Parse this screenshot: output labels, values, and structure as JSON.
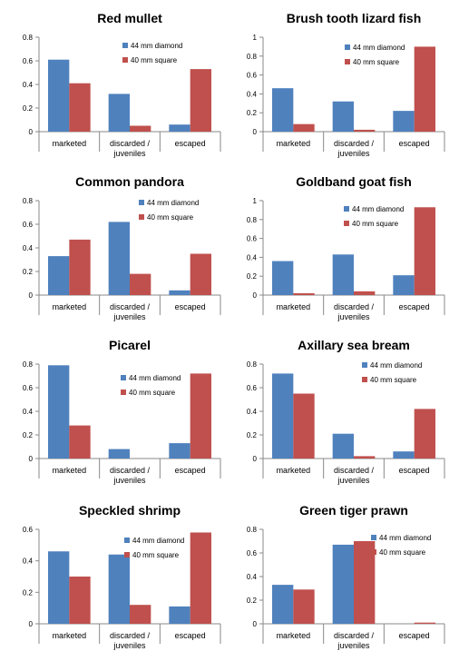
{
  "legend_labels": [
    "44 mm diamond",
    "40 mm square"
  ],
  "colors": {
    "series_1": "#4F81BD",
    "series_2": "#C0504D",
    "axis": "#888888",
    "text": "#000000"
  },
  "chart_data": [
    {
      "type": "bar",
      "title": "Red mullet",
      "categories": [
        [
          "marketed"
        ],
        [
          "discarded /",
          "juveniles"
        ],
        [
          "escaped"
        ]
      ],
      "series": [
        {
          "name": "44 mm diamond",
          "values": [
            0.61,
            0.32,
            0.06
          ]
        },
        {
          "name": "40 mm square",
          "values": [
            0.41,
            0.05,
            0.53
          ]
        }
      ],
      "ylim": [
        0,
        0.8
      ],
      "yticks": [
        "0",
        "0.2",
        "0.4",
        "0.6",
        "0.8"
      ],
      "legend": "right"
    },
    {
      "type": "bar",
      "title": "Brush tooth lizard fish",
      "categories": [
        [
          "marketed"
        ],
        [
          "discarded /",
          "juveniles"
        ],
        [
          "escaped"
        ]
      ],
      "series": [
        {
          "name": "44 mm diamond",
          "values": [
            0.46,
            0.32,
            0.22
          ]
        },
        {
          "name": "40 mm square",
          "values": [
            0.08,
            0.02,
            0.9
          ]
        }
      ],
      "ylim": [
        0,
        1
      ],
      "yticks": [
        "0",
        "0.2",
        "0.4",
        "0.6",
        "0.8",
        "1"
      ],
      "legend": "right"
    },
    {
      "type": "bar",
      "title": "Common pandora",
      "categories": [
        [
          "marketed"
        ],
        [
          "discarded /",
          "juveniles"
        ],
        [
          "escaped"
        ]
      ],
      "series": [
        {
          "name": "44 mm diamond",
          "values": [
            0.33,
            0.62,
            0.04
          ]
        },
        {
          "name": "40 mm square",
          "values": [
            0.47,
            0.18,
            0.35
          ]
        }
      ],
      "ylim": [
        0,
        0.8
      ],
      "yticks": [
        "0",
        "0.2",
        "0.4",
        "0.6",
        "0.8"
      ],
      "legend": "top-right"
    },
    {
      "type": "bar",
      "title": "Goldband goat fish",
      "categories": [
        [
          "marketed"
        ],
        [
          "discarded /",
          "juveniles"
        ],
        [
          "escaped"
        ]
      ],
      "series": [
        {
          "name": "44 mm diamond",
          "values": [
            0.36,
            0.43,
            0.21
          ]
        },
        {
          "name": "40 mm square",
          "values": [
            0.02,
            0.04,
            0.93
          ]
        }
      ],
      "ylim": [
        0,
        1
      ],
      "yticks": [
        "0",
        "0.2",
        "0.4",
        "0.6",
        "0.8",
        "1"
      ],
      "legend": "right"
    },
    {
      "type": "bar",
      "title": "Picarel",
      "categories": [
        [
          "marketed"
        ],
        [
          "discarded /",
          "juveniles"
        ],
        [
          "escaped"
        ]
      ],
      "series": [
        {
          "name": "44 mm diamond",
          "values": [
            0.79,
            0.08,
            0.13
          ]
        },
        {
          "name": "40 mm square",
          "values": [
            0.28,
            0,
            0.72
          ]
        }
      ],
      "ylim": [
        0,
        0.8
      ],
      "yticks": [
        "0",
        "0.2",
        "0.4",
        "0.6",
        "0.8"
      ],
      "legend": "right"
    },
    {
      "type": "bar",
      "title": "Axillary sea bream",
      "categories": [
        [
          "marketed"
        ],
        [
          "discarded /",
          "juveniles"
        ],
        [
          "escaped"
        ]
      ],
      "series": [
        {
          "name": "44 mm diamond",
          "values": [
            0.72,
            0.21,
            0.06
          ]
        },
        {
          "name": "40 mm square",
          "values": [
            0.55,
            0.02,
            0.42
          ]
        }
      ],
      "ylim": [
        0,
        0.8
      ],
      "yticks": [
        "0",
        "0.2",
        "0.4",
        "0.6",
        "0.8"
      ],
      "legend": "right"
    },
    {
      "type": "bar",
      "title": "Speckled shrimp",
      "categories": [
        [
          "marketed"
        ],
        [
          "discarded /",
          "juveniles"
        ],
        [
          "escaped"
        ]
      ],
      "series": [
        {
          "name": "44 mm diamond",
          "values": [
            0.46,
            0.44,
            0.11
          ]
        },
        {
          "name": "40 mm square",
          "values": [
            0.3,
            0.12,
            0.58
          ]
        }
      ],
      "ylim": [
        0,
        0.6
      ],
      "yticks": [
        "0",
        "0.2",
        "0.4",
        "0.6"
      ],
      "legend": "right"
    },
    {
      "type": "bar",
      "title": "Green tiger prawn",
      "categories": [
        [
          "marketed"
        ],
        [
          "discarded /",
          "juveniles"
        ],
        [
          "escaped"
        ]
      ],
      "series": [
        {
          "name": "44 mm diamond",
          "values": [
            0.33,
            0.67,
            0
          ]
        },
        {
          "name": "40 mm square",
          "values": [
            0.29,
            0.7,
            0.01
          ]
        }
      ],
      "ylim": [
        0,
        0.8
      ],
      "yticks": [
        "0",
        "0.2",
        "0.4",
        "0.6",
        "0.8"
      ],
      "legend": "right"
    }
  ]
}
